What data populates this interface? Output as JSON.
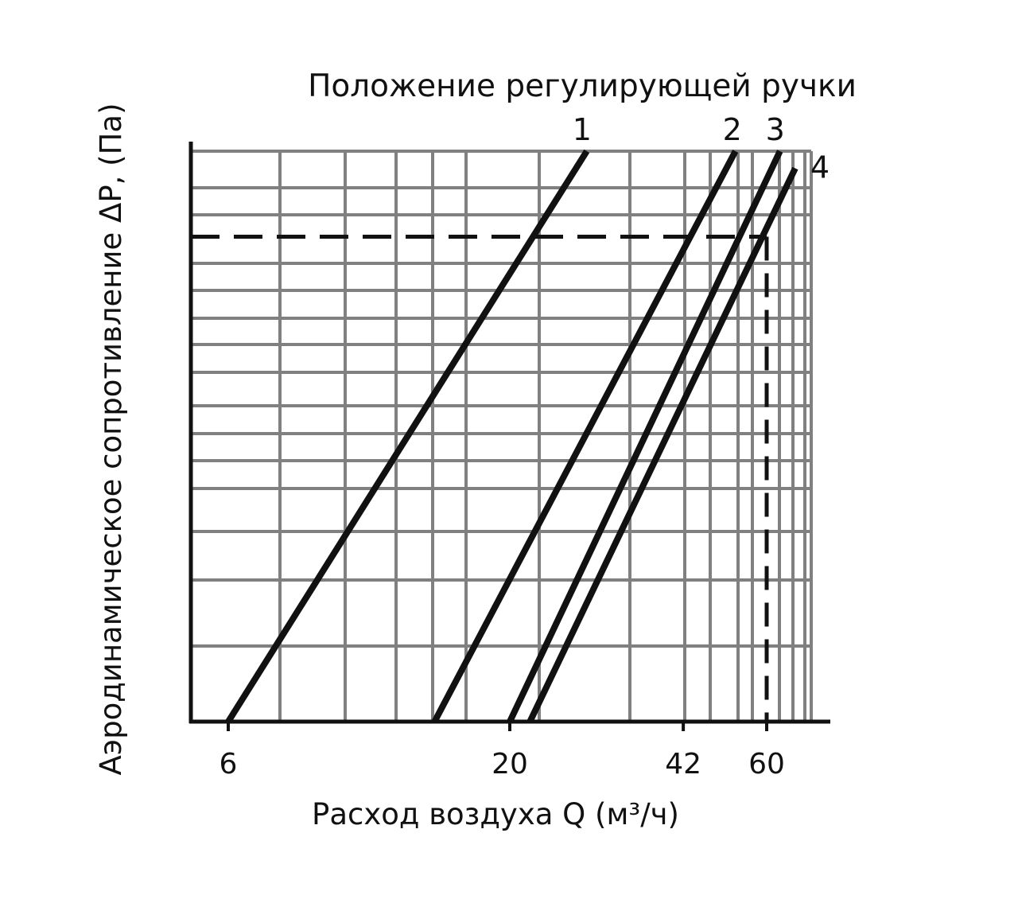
{
  "chart_data": {
    "type": "line",
    "title": "Положение регулирующей ручки",
    "xlabel": "Расход воздуха Q (м³/ч)",
    "ylabel": "Аэродинамическое сопротивление ΔP, (Па)",
    "x_scale": "log",
    "x_ticks": [
      6,
      20,
      42,
      60
    ],
    "x_tick_labels": [
      "6",
      "20",
      "42",
      "60"
    ],
    "xlim": [
      5.2,
      70
    ],
    "ylim": [
      0,
      1
    ],
    "y_tick_labels": [],
    "grid": true,
    "legend": "none",
    "series": [
      {
        "name": "1",
        "x": [
          6.0,
          27.8
        ],
        "y": [
          0,
          1
        ]
      },
      {
        "name": "2",
        "x": [
          14.5,
          52.5
        ],
        "y": [
          0,
          1
        ]
      },
      {
        "name": "3",
        "x": [
          20.0,
          63.5
        ],
        "y": [
          0,
          1
        ]
      },
      {
        "name": "4",
        "x": [
          21.8,
          67.8
        ],
        "y": [
          0,
          0.97
        ]
      }
    ],
    "reference_lines": [
      {
        "kind": "horizontal",
        "style": "dashed",
        "y": 0.85
      },
      {
        "kind": "vertical",
        "style": "dashed",
        "x": 60
      }
    ],
    "colors": {
      "line": "#111111",
      "grid": "#808080",
      "axis": "#111111"
    }
  }
}
